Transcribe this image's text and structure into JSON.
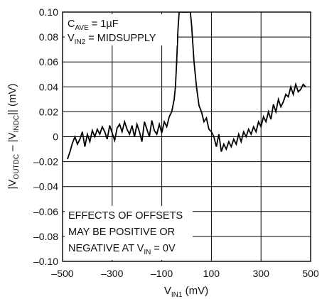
{
  "chart_data": {
    "type": "line",
    "title": "",
    "xlabel": {
      "main": "V",
      "sub": "IN1",
      "unit": " (mV)"
    },
    "ylabel": {
      "p1": "|V",
      "s1": "OUTDC",
      "p2": " – |V",
      "s2": "INDC",
      "p3": "|| (mV)"
    },
    "xlim": [
      -500,
      500
    ],
    "ylim": [
      -0.1,
      0.1
    ],
    "x_ticks": [
      -500,
      -300,
      -100,
      100,
      300,
      500
    ],
    "x_tick_labels": [
      "–500",
      "–300",
      "–100",
      "100",
      "300",
      "500"
    ],
    "y_ticks": [
      0.1,
      0.08,
      0.06,
      0.04,
      0.02,
      0,
      -0.02,
      -0.04,
      -0.06,
      -0.08,
      -0.1
    ],
    "y_tick_labels": [
      "0.10",
      "0.08",
      "0.06",
      "0.04",
      "0.02",
      "0",
      "–0.02",
      "–0.04",
      "–0.06",
      "–0.08",
      "–0.10"
    ],
    "grid": true,
    "legend": "none",
    "line_color": "#000000",
    "condition_lines": [
      {
        "pre": "C",
        "sub": "AVE",
        "post": " = 1µF"
      },
      {
        "pre": "V",
        "sub": "IN2",
        "post": " = MIDSUPPLY"
      }
    ],
    "note_lines": [
      {
        "pre": "EFFECTS OF OFFSETS",
        "sub": "",
        "post": ""
      },
      {
        "pre": "MAY BE POSITIVE OR",
        "sub": "",
        "post": ""
      },
      {
        "pre": "NEGATIVE AT V",
        "sub": "IN",
        "post": " = 0V"
      }
    ],
    "series": [
      {
        "x": [
          -480,
          -470,
          -460,
          -450,
          -440,
          -430,
          -420,
          -410,
          -400,
          -390,
          -380,
          -370,
          -360,
          -350,
          -340,
          -330,
          -320,
          -310,
          -300,
          -290,
          -280,
          -270,
          -260,
          -250,
          -240,
          -230,
          -220,
          -210,
          -200,
          -190,
          -180,
          -170,
          -160,
          -150,
          -140,
          -130,
          -120,
          -110,
          -100,
          -90,
          -80,
          -70,
          -60,
          -50,
          -45,
          -40,
          -35,
          -30,
          -25,
          -20,
          -15,
          -10,
          -5,
          0,
          5,
          10,
          15,
          20,
          30,
          40,
          50,
          60,
          70,
          80,
          90,
          100,
          110,
          120,
          130,
          140,
          150,
          160,
          170,
          180,
          190,
          200,
          210,
          220,
          230,
          240,
          250,
          260,
          270,
          280,
          290,
          300,
          310,
          320,
          330,
          340,
          350,
          360,
          370,
          380,
          390,
          400,
          410,
          420,
          430,
          440,
          450,
          460,
          470,
          480
        ],
        "y": [
          -0.018,
          -0.012,
          -0.005,
          0.0,
          -0.006,
          -0.002,
          0.004,
          -0.008,
          0.002,
          -0.004,
          0.005,
          0.0,
          0.006,
          0.002,
          0.008,
          0.004,
          -0.002,
          0.009,
          0.003,
          -0.003,
          0.007,
          0.01,
          0.004,
          0.012,
          0.006,
          0.002,
          0.009,
          0.0,
          0.01,
          0.004,
          -0.004,
          0.012,
          0.006,
          0.0,
          0.013,
          0.005,
          0.002,
          0.01,
          0.003,
          0.012,
          0.008,
          0.016,
          0.02,
          0.03,
          0.04,
          0.06,
          0.085,
          0.1,
          0.1,
          0.1,
          0.1,
          0.1,
          0.1,
          0.1,
          0.1,
          0.1,
          0.1,
          0.09,
          0.06,
          0.04,
          0.025,
          0.02,
          0.012,
          0.015,
          0.006,
          0.004,
          0.0,
          -0.008,
          0.002,
          -0.012,
          -0.006,
          -0.01,
          -0.004,
          -0.008,
          -0.002,
          -0.006,
          0.002,
          -0.004,
          0.004,
          0.0,
          0.006,
          0.002,
          0.008,
          0.004,
          0.012,
          0.008,
          0.016,
          0.012,
          0.02,
          0.014,
          0.026,
          0.02,
          0.03,
          0.024,
          0.028,
          0.034,
          0.032,
          0.04,
          0.034,
          0.042,
          0.036,
          0.038,
          0.042,
          0.04
        ]
      }
    ]
  }
}
